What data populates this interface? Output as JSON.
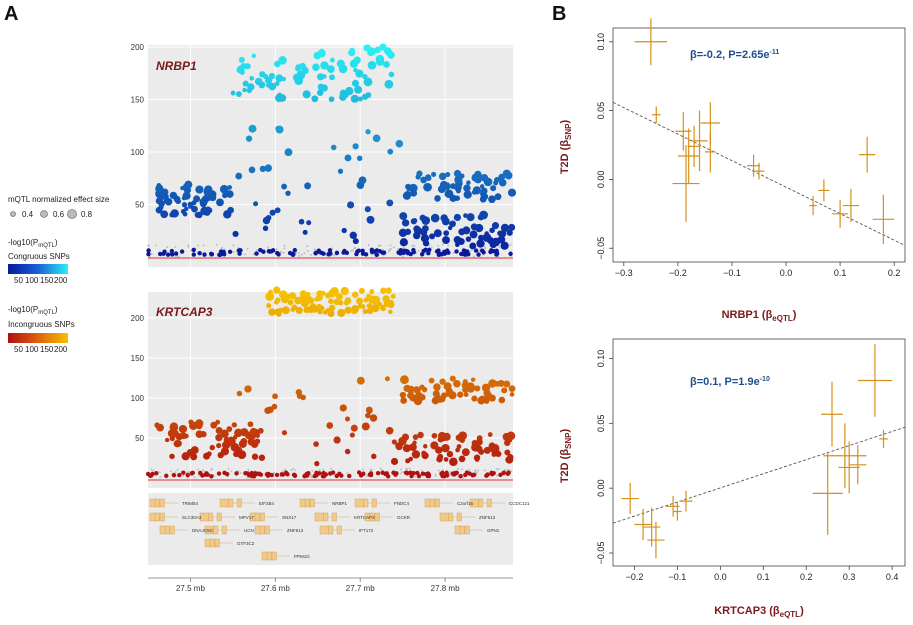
{
  "panels": {
    "a": "A",
    "b": "B"
  },
  "colors": {
    "plot_bg": "#ebebeb",
    "congruous_low": "#0a1a9a",
    "congruous_high": "#2af0f5",
    "incongruous_low": "#b01010",
    "incongruous_high": "#f5c000",
    "forest_orange": "#d4901a",
    "stat_blue": "#1f4e8c",
    "label_red": "#7a1a1a",
    "threshold_red": "#e03030"
  },
  "legend": {
    "size_title": "mQTL normalized effect size",
    "size_values": [
      "0.4",
      "0.6",
      "0.8"
    ],
    "pval_label_congruous": "-log10(P",
    "pval_sub_congruous": "mQTL",
    "pval_close": ")",
    "congruous_title": "Congruous SNPs",
    "congruous_ticks": [
      "50",
      "100",
      "150",
      "200"
    ],
    "pval_label_incongruous": "-log10(P",
    "pval_sub_incongruous": "mQTL",
    "incongruous_title": "Incongruous SNPs",
    "incongruous_ticks": [
      "50",
      "100",
      "150",
      "200"
    ]
  },
  "genes_track": {
    "row1": [
      "TRIM54",
      "EIF2B4",
      "NRBP1",
      "FNDC4",
      "C2orf16",
      "CCDC121"
    ],
    "row2": [
      "SLC30A3",
      "MPV17",
      "SNX17",
      "KRTCAP3",
      "GCKR",
      "ZNF512"
    ],
    "row3": [
      "DNAJC5G",
      "UCN",
      "ZNF513",
      "IFT172",
      "GPN1"
    ],
    "row4": [
      "GTF3C2"
    ],
    "row5": [
      "PPM1G"
    ]
  },
  "chart_data": [
    {
      "type": "scatter",
      "title": "NRBP1",
      "xlabel": "",
      "ylabel": "-log10(P mQTL)",
      "ylim": [
        0,
        200
      ],
      "yticks": [
        "200",
        "150",
        "100",
        "50"
      ],
      "xlim_mb": [
        27.45,
        27.88
      ],
      "grid": true,
      "clusters": [
        {
          "name": "high cluster",
          "x_range_mb": [
            27.55,
            27.74
          ],
          "y_range": [
            150,
            200
          ],
          "color": "cyan"
        },
        {
          "name": "left plateau",
          "x_range_mb": [
            27.46,
            27.55
          ],
          "y_range": [
            40,
            70
          ],
          "color": "blue"
        },
        {
          "name": "right plateau",
          "x_range_mb": [
            27.75,
            27.88
          ],
          "y_range": [
            55,
            80
          ],
          "color": "blue"
        },
        {
          "name": "right lower band",
          "x_range_mb": [
            27.75,
            27.88
          ],
          "y_range": [
            10,
            40
          ],
          "color": "dark blue"
        }
      ]
    },
    {
      "type": "scatter",
      "title": "KRTCAP3",
      "xlabel": "",
      "ylabel": "-log10(P mQTL)",
      "ylim": [
        0,
        230
      ],
      "yticks": [
        "200",
        "150",
        "100",
        "50"
      ],
      "xlim_mb": [
        27.45,
        27.88
      ],
      "xticks": [
        "27.5 mb",
        "27.6 mb",
        "27.7 mb",
        "27.8 mb"
      ],
      "grid": true,
      "clusters": [
        {
          "name": "high cluster",
          "x_range_mb": [
            27.59,
            27.74
          ],
          "y_range": [
            205,
            235
          ],
          "color": "yellow"
        },
        {
          "name": "left band",
          "x_range_mb": [
            27.46,
            27.58
          ],
          "y_range": [
            25,
            70
          ],
          "color": "red"
        },
        {
          "name": "right plateau",
          "x_range_mb": [
            27.75,
            27.88
          ],
          "y_range": [
            95,
            125
          ],
          "color": "orange"
        },
        {
          "name": "right lower band",
          "x_range_mb": [
            27.75,
            27.88
          ],
          "y_range": [
            20,
            55
          ],
          "color": "dark red"
        }
      ]
    },
    {
      "type": "scatter",
      "title": "",
      "xlabel": "NRBP1 (β",
      "xlabel_sub": "eQTL",
      "ylabel": "T2D (β",
      "ylabel_sub": "SNP",
      "annotation": "β=-0.2, P=2.65e",
      "annotation_exp": "-11",
      "xlim": [
        -0.32,
        0.22
      ],
      "ylim": [
        -0.06,
        0.11
      ],
      "xticks": [
        -0.3,
        -0.2,
        -0.1,
        0.0,
        0.1,
        0.2
      ],
      "xtick_labels": [
        "−0.3",
        "−0.2",
        "−0.1",
        "0.0",
        "0.1",
        "0.2"
      ],
      "yticks": [
        0.1,
        0.05,
        0.0,
        -0.05
      ],
      "ytick_labels": [
        "0.10",
        "0.05",
        "0.00",
        "−0.05"
      ],
      "fit": {
        "x0": -0.32,
        "y0": 0.056,
        "x1": 0.22,
        "y1": -0.048
      },
      "points": [
        {
          "x": -0.25,
          "y": 0.1,
          "xerr": 0.03,
          "yerr": 0.017
        },
        {
          "x": -0.24,
          "y": 0.047,
          "xerr": 0.008,
          "yerr": 0.006
        },
        {
          "x": -0.19,
          "y": 0.035,
          "xerr": 0.015,
          "yerr": 0.014
        },
        {
          "x": -0.18,
          "y": 0.017,
          "xerr": 0.02,
          "yerr": 0.02
        },
        {
          "x": -0.17,
          "y": 0.024,
          "xerr": 0.012,
          "yerr": 0.015
        },
        {
          "x": -0.16,
          "y": 0.028,
          "xerr": 0.015,
          "yerr": 0.022
        },
        {
          "x": -0.14,
          "y": 0.041,
          "xerr": 0.018,
          "yerr": 0.015
        },
        {
          "x": -0.14,
          "y": 0.02,
          "xerr": 0.01,
          "yerr": 0.015
        },
        {
          "x": -0.185,
          "y": -0.003,
          "xerr": 0.025,
          "yerr": 0.028
        },
        {
          "x": -0.06,
          "y": 0.01,
          "xerr": 0.012,
          "yerr": 0.008
        },
        {
          "x": -0.05,
          "y": 0.006,
          "xerr": 0.01,
          "yerr": 0.006
        },
        {
          "x": 0.05,
          "y": -0.019,
          "xerr": 0.007,
          "yerr": 0.007
        },
        {
          "x": 0.07,
          "y": -0.008,
          "xerr": 0.01,
          "yerr": 0.008
        },
        {
          "x": 0.1,
          "y": -0.025,
          "xerr": 0.015,
          "yerr": 0.01
        },
        {
          "x": 0.12,
          "y": -0.019,
          "xerr": 0.015,
          "yerr": 0.012
        },
        {
          "x": 0.15,
          "y": 0.018,
          "xerr": 0.015,
          "yerr": 0.013
        },
        {
          "x": 0.18,
          "y": -0.029,
          "xerr": 0.02,
          "yerr": 0.018
        }
      ]
    },
    {
      "type": "scatter",
      "title": "",
      "xlabel": "KRTCAP3 (β",
      "xlabel_sub": "eQTL",
      "ylabel": "T2D (β",
      "ylabel_sub": "SNP",
      "annotation": "β=0.1, P=1.9e",
      "annotation_exp": "-10",
      "xlim": [
        -0.25,
        0.43
      ],
      "ylim": [
        -0.06,
        0.115
      ],
      "xticks": [
        -0.2,
        -0.1,
        0.0,
        0.1,
        0.2,
        0.3,
        0.4
      ],
      "xtick_labels": [
        "−0.2",
        "−0.1",
        "0.0",
        "0.1",
        "0.2",
        "0.3",
        "0.4"
      ],
      "yticks": [
        0.1,
        0.05,
        0.0,
        -0.05
      ],
      "ytick_labels": [
        "0.10",
        "0.05",
        "0.00",
        "−0.05"
      ],
      "fit": {
        "x0": -0.25,
        "y0": -0.027,
        "x1": 0.43,
        "y1": 0.047
      },
      "points": [
        {
          "x": -0.21,
          "y": -0.008,
          "xerr": 0.02,
          "yerr": 0.012
        },
        {
          "x": -0.18,
          "y": -0.028,
          "xerr": 0.02,
          "yerr": 0.012
        },
        {
          "x": -0.16,
          "y": -0.03,
          "xerr": 0.02,
          "yerr": 0.015
        },
        {
          "x": -0.15,
          "y": -0.04,
          "xerr": 0.02,
          "yerr": 0.014
        },
        {
          "x": -0.11,
          "y": -0.014,
          "xerr": 0.015,
          "yerr": 0.008
        },
        {
          "x": -0.1,
          "y": -0.018,
          "xerr": 0.01,
          "yerr": 0.007
        },
        {
          "x": -0.08,
          "y": -0.01,
          "xerr": 0.015,
          "yerr": 0.008
        },
        {
          "x": 0.25,
          "y": -0.004,
          "xerr": 0.035,
          "yerr": 0.032
        },
        {
          "x": 0.26,
          "y": 0.057,
          "xerr": 0.025,
          "yerr": 0.025
        },
        {
          "x": 0.29,
          "y": 0.025,
          "xerr": 0.05,
          "yerr": 0.025
        },
        {
          "x": 0.3,
          "y": 0.016,
          "xerr": 0.025,
          "yerr": 0.02
        },
        {
          "x": 0.32,
          "y": 0.018,
          "xerr": 0.02,
          "yerr": 0.015
        },
        {
          "x": 0.36,
          "y": 0.083,
          "xerr": 0.04,
          "yerr": 0.028
        },
        {
          "x": 0.38,
          "y": 0.038,
          "xerr": 0.01,
          "yerr": 0.007
        }
      ]
    }
  ]
}
